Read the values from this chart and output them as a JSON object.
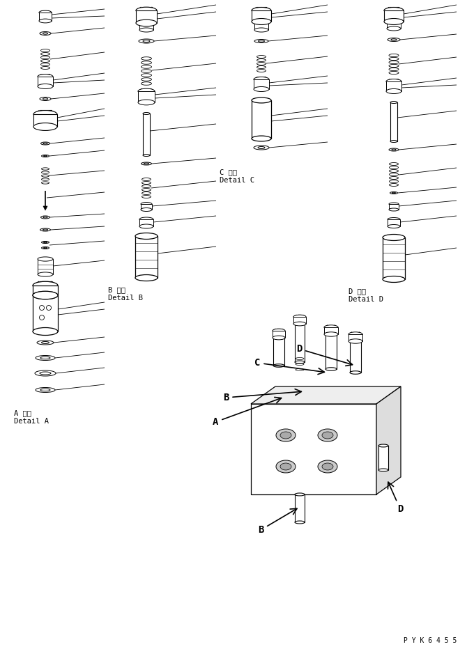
{
  "background_color": "#ffffff",
  "fig_width": 6.7,
  "fig_height": 9.32,
  "dpi": 100,
  "label_A_line1": "A 詳細",
  "label_A_line2": "Detail A",
  "label_B_line1": "B 詳細",
  "label_B_line2": "Detail B",
  "label_C_line1": "C 詳細",
  "label_C_line2": "Detail C",
  "label_D_line1": "D 詳細",
  "label_D_line2": "Detail D",
  "watermark": "P Y K 6 4 5 5"
}
